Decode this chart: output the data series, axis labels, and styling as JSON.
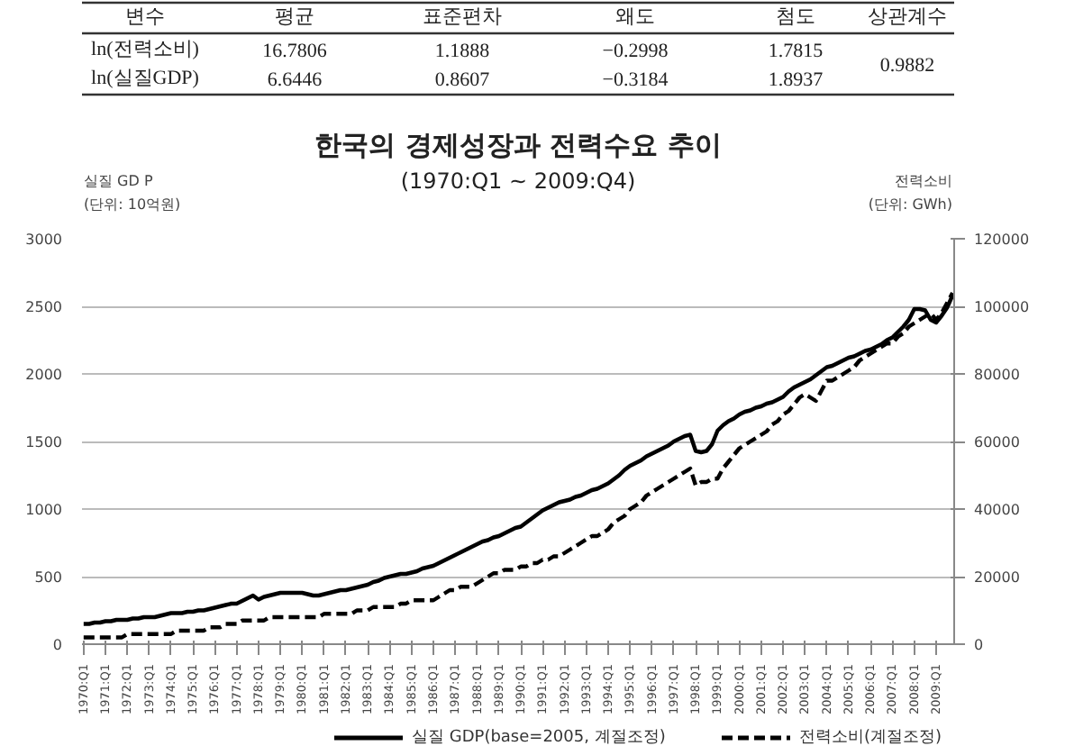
{
  "chart_data": [
    {
      "type": "other",
      "annotations": [
        "변수",
        "평균",
        "표준편차",
        "왜도",
        "첨도",
        "상관계수",
        "ln(전력소비)",
        "16.7806",
        "1.1888",
        "−0.2998",
        "1.7815",
        "0.9882",
        "ln(실질GDP)",
        "6.6446",
        "0.8607",
        "−0.3184",
        "1.8937"
      ]
    },
    {
      "type": "line",
      "title": "한국의 경제성장과 전력수요 추이",
      "subtitle": "(1970:Q1 ~ 2009:Q4)",
      "ylabel": "실질 GD P\n(단위: 10억원)",
      "y2label": "전력소비\n(단위: GWh)",
      "categories": [
        "1970:Q1",
        null,
        null,
        null,
        "1971:Q1",
        null,
        null,
        null,
        "1972:Q1",
        null,
        null,
        null,
        "1973:Q1",
        null,
        null,
        null,
        "1974:Q1",
        null,
        null,
        null,
        "1975:Q1",
        null,
        null,
        null,
        "1976:Q1",
        null,
        null,
        null,
        "1977:Q1",
        null,
        null,
        null,
        "1978:Q1",
        null,
        null,
        null,
        "1979:Q1",
        null,
        null,
        null,
        "1980:Q1",
        null,
        null,
        null,
        "1981:Q1",
        null,
        null,
        null,
        "1982:Q1",
        null,
        null,
        null,
        "1983:Q1",
        null,
        null,
        null,
        "1984:Q1",
        null,
        null,
        null,
        "1985:Q1",
        null,
        null,
        null,
        "1986:Q1",
        null,
        null,
        null,
        "1987:Q1",
        null,
        null,
        null,
        "1988:Q1",
        null,
        null,
        null,
        "1989:Q1",
        null,
        null,
        null,
        "1990:Q1",
        null,
        null,
        null,
        "1991:Q1",
        null,
        null,
        null,
        "1992:Q1",
        null,
        null,
        null,
        "1993:Q1",
        null,
        null,
        null,
        "1994:Q1",
        null,
        null,
        null,
        "1995:Q1",
        null,
        null,
        null,
        "1996:Q1",
        null,
        null,
        null,
        "1997:Q1",
        null,
        null,
        null,
        "1998:Q1",
        null,
        null,
        null,
        "1999:Q1",
        null,
        null,
        null,
        "2000:Q1",
        null,
        null,
        null,
        "2001:Q1",
        null,
        null,
        null,
        "2002:Q1",
        null,
        null,
        null,
        "2003:Q1",
        null,
        null,
        null,
        "2004:Q1",
        null,
        null,
        null,
        "2005:Q1",
        null,
        null,
        null,
        "2006:Q1",
        null,
        null,
        null,
        "2007:Q1",
        null,
        null,
        null,
        "2008:Q1",
        null,
        null,
        null,
        "2009:Q1",
        null,
        null,
        null
      ],
      "ylim": [
        0,
        3000
      ],
      "yticks": [
        0,
        500,
        1000,
        1500,
        2000,
        2500,
        3000
      ],
      "y2lim": [
        0,
        120000
      ],
      "y2ticks": [
        0,
        20000,
        40000,
        60000,
        80000,
        100000,
        120000
      ],
      "grid": "y",
      "legend": "bottom",
      "series": [
        {
          "name": "실질 GDP(base=2005, 계절조정)",
          "color": "#000000",
          "line_style": "solid",
          "values": [
            150,
            150,
            160,
            160,
            170,
            170,
            180,
            180,
            180,
            190,
            190,
            200,
            200,
            200,
            210,
            220,
            230,
            230,
            230,
            240,
            240,
            250,
            250,
            260,
            270,
            280,
            290,
            300,
            300,
            320,
            340,
            360,
            330,
            350,
            360,
            370,
            380,
            380,
            380,
            380,
            380,
            370,
            360,
            360,
            370,
            380,
            390,
            400,
            400,
            410,
            420,
            430,
            440,
            460,
            470,
            490,
            500,
            510,
            520,
            520,
            530,
            540,
            560,
            570,
            580,
            600,
            620,
            640,
            660,
            680,
            700,
            720,
            740,
            760,
            770,
            790,
            800,
            820,
            840,
            860,
            870,
            900,
            930,
            960,
            990,
            1010,
            1030,
            1050,
            1060,
            1070,
            1090,
            1100,
            1120,
            1140,
            1150,
            1170,
            1190,
            1220,
            1250,
            1290,
            1320,
            1340,
            1360,
            1390,
            1410,
            1430,
            1450,
            1470,
            1500,
            1520,
            1540,
            1550,
            1430,
            1420,
            1430,
            1480,
            1580,
            1620,
            1650,
            1670,
            1700,
            1720,
            1730,
            1750,
            1760,
            1780,
            1790,
            1810,
            1830,
            1870,
            1900,
            1920,
            1940,
            1960,
            1990,
            2020,
            2050,
            2060,
            2080,
            2100,
            2120,
            2130,
            2150,
            2170,
            2180,
            2200,
            2220,
            2250,
            2270,
            2310,
            2350,
            2400,
            2480,
            2480,
            2470,
            2400,
            2380,
            2430,
            2490,
            2580
          ]
        },
        {
          "name": "전력소비(계절조정)",
          "color": "#000000",
          "line_style": "dashed",
          "axis": "y2",
          "values": [
            2000,
            2000,
            2000,
            2000,
            2000,
            2000,
            2000,
            2000,
            3000,
            3000,
            3000,
            3000,
            3000,
            3000,
            3000,
            3000,
            3000,
            4000,
            4000,
            4000,
            4000,
            4000,
            4000,
            5000,
            5000,
            5000,
            6000,
            6000,
            6000,
            7000,
            7000,
            7000,
            7000,
            7000,
            8000,
            8000,
            8000,
            8000,
            8000,
            8000,
            8000,
            8000,
            8000,
            8000,
            9000,
            9000,
            9000,
            9000,
            9000,
            9000,
            10000,
            10000,
            10000,
            11000,
            11000,
            11000,
            11000,
            11000,
            12000,
            12000,
            13000,
            13000,
            13000,
            13000,
            13000,
            14000,
            15000,
            16000,
            16000,
            17000,
            17000,
            17000,
            18000,
            19000,
            20000,
            21000,
            21000,
            22000,
            22000,
            22000,
            23000,
            23000,
            24000,
            24000,
            25000,
            25000,
            26000,
            26000,
            27000,
            28000,
            29000,
            30000,
            31000,
            32000,
            32000,
            33000,
            34000,
            36000,
            37000,
            38000,
            40000,
            41000,
            42000,
            44000,
            45000,
            46000,
            47000,
            48000,
            49000,
            50000,
            51000,
            52000,
            47000,
            48000,
            48000,
            49000,
            49000,
            52000,
            54000,
            56000,
            58000,
            59000,
            60000,
            61000,
            62000,
            63000,
            65000,
            66000,
            68000,
            69000,
            71000,
            73000,
            74000,
            73000,
            72000,
            75000,
            78000,
            78000,
            79000,
            80000,
            81000,
            82000,
            84000,
            85000,
            86000,
            87000,
            88000,
            89000,
            89000,
            91000,
            92000,
            94000,
            95000,
            96000,
            97000,
            98000,
            96000,
            98000,
            101000,
            104000
          ]
        }
      ]
    }
  ]
}
